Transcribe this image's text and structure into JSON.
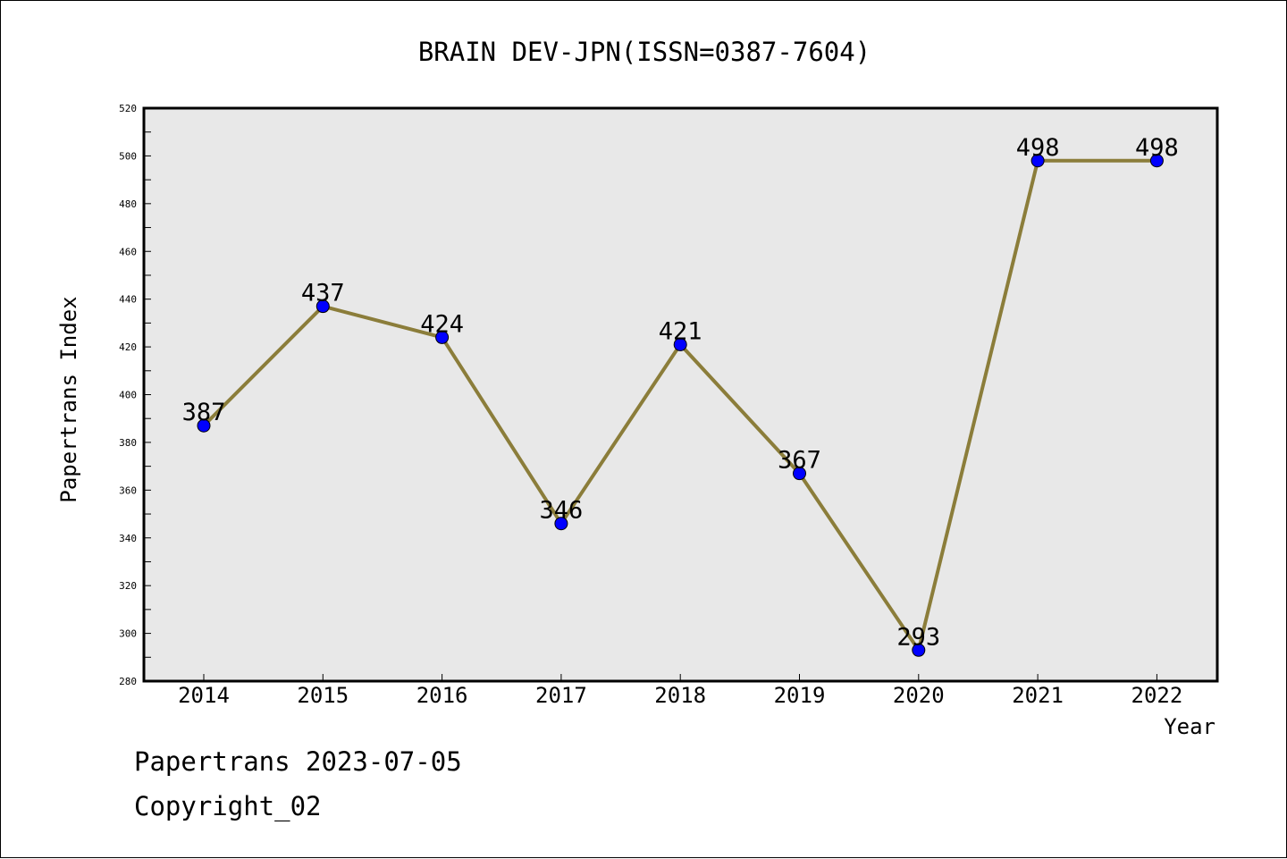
{
  "footer": {
    "line1": "Papertrans 2023-07-05",
    "line2": "Copyright_02"
  },
  "chart_data": {
    "type": "line",
    "title": "BRAIN DEV-JPN(ISSN=0387-7604)",
    "xlabel": "Year",
    "ylabel": "Papertrans Index",
    "categories": [
      "2014",
      "2015",
      "2016",
      "2017",
      "2018",
      "2019",
      "2020",
      "2021",
      "2022"
    ],
    "series": [
      {
        "values": [
          387,
          437,
          424,
          346,
          421,
          367,
          293,
          498,
          498
        ]
      }
    ],
    "data_labels": [
      "387",
      "437",
      "424",
      "346",
      "421",
      "367",
      "293",
      "498",
      "498"
    ],
    "ylim": [
      280,
      520
    ],
    "yticks": [
      280,
      300,
      320,
      340,
      360,
      380,
      400,
      420,
      440,
      460,
      480,
      500,
      520
    ],
    "grid": false,
    "legend": "none",
    "colors": {
      "line": "#8b7d3a",
      "marker": "#0000ff",
      "plot_background": "#e8e8e8",
      "axes": "#000000"
    }
  }
}
